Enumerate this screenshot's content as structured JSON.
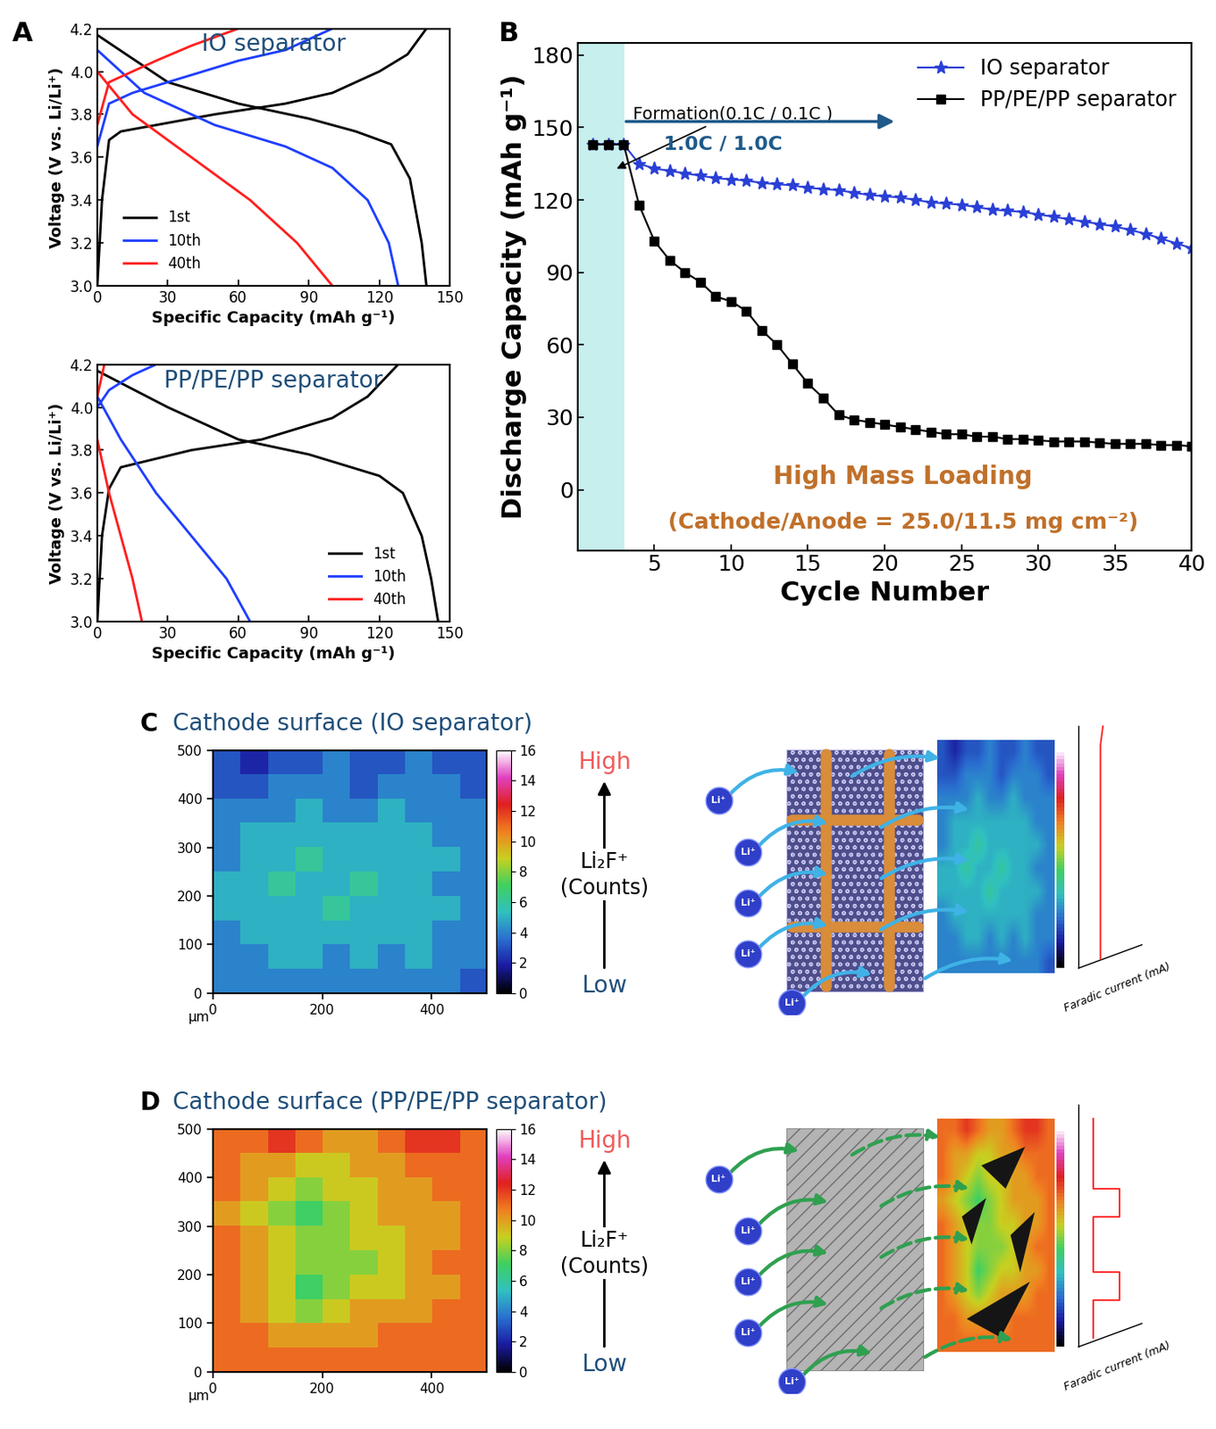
{
  "chart_data": [
    {
      "type": "line",
      "panel": "A",
      "title": "IO separator",
      "xlabel": "Specific Capacity (mAh g⁻¹)",
      "ylabel": "Voltage (V vs. Li/Li⁺)",
      "xlim": [
        0,
        150
      ],
      "xticks": [
        0,
        30,
        60,
        90,
        120,
        150
      ],
      "ylim": [
        3.0,
        4.2
      ],
      "yticks": [
        3.0,
        3.2,
        3.4,
        3.6,
        3.8,
        4.0,
        4.2
      ],
      "legend": "lower left",
      "series": [
        {
          "name": "1st",
          "color": "#000000",
          "x": [
            0,
            2,
            5,
            10,
            30,
            50,
            80,
            100,
            120,
            132,
            140,
            null,
            0,
            30,
            60,
            90,
            110,
            125,
            133,
            138,
            140
          ],
          "values": [
            3.0,
            3.4,
            3.68,
            3.72,
            3.76,
            3.8,
            3.85,
            3.9,
            4.0,
            4.08,
            4.2,
            null,
            4.17,
            3.95,
            3.85,
            3.78,
            3.72,
            3.66,
            3.5,
            3.2,
            3.0
          ]
        },
        {
          "name": "10th",
          "color": "#1f3fff",
          "x": [
            0,
            5,
            15,
            30,
            60,
            80,
            100,
            null,
            0,
            20,
            50,
            80,
            100,
            115,
            124,
            128
          ],
          "values": [
            3.65,
            3.85,
            3.9,
            3.95,
            4.05,
            4.1,
            4.2,
            null,
            4.1,
            3.9,
            3.75,
            3.65,
            3.55,
            3.4,
            3.2,
            3.0
          ]
        },
        {
          "name": "40th",
          "color": "#ff2020",
          "x": [
            0,
            5,
            25,
            40,
            60,
            null,
            0,
            15,
            40,
            65,
            85,
            100
          ],
          "values": [
            3.75,
            3.95,
            4.05,
            4.12,
            4.2,
            null,
            4.0,
            3.8,
            3.6,
            3.4,
            3.2,
            3.0
          ]
        }
      ]
    },
    {
      "type": "line",
      "title": "PP/PE/PP separator",
      "xlabel": "Specific Capacity (mAh g⁻¹)",
      "ylabel": "Voltage (V vs. Li/Li⁺)",
      "xlim": [
        0,
        150
      ],
      "xticks": [
        0,
        30,
        60,
        90,
        120,
        150
      ],
      "ylim": [
        3.0,
        4.2
      ],
      "yticks": [
        3.0,
        3.2,
        3.4,
        3.6,
        3.8,
        4.0,
        4.2
      ],
      "legend": "lower right",
      "series": [
        {
          "name": "1st",
          "color": "#000000",
          "x": [
            0,
            2,
            5,
            10,
            40,
            70,
            100,
            115,
            128,
            null,
            0,
            30,
            60,
            90,
            120,
            130,
            138,
            142,
            145
          ],
          "values": [
            3.0,
            3.4,
            3.62,
            3.72,
            3.8,
            3.85,
            3.95,
            4.05,
            4.2,
            null,
            4.17,
            4.0,
            3.85,
            3.78,
            3.68,
            3.6,
            3.4,
            3.2,
            3.0
          ]
        },
        {
          "name": "10th",
          "color": "#1f3fff",
          "x": [
            0,
            5,
            15,
            25,
            null,
            0,
            10,
            25,
            40,
            55,
            65
          ],
          "values": [
            4.0,
            4.08,
            4.15,
            4.2,
            null,
            4.05,
            3.85,
            3.6,
            3.4,
            3.2,
            3.0
          ]
        },
        {
          "name": "40th",
          "color": "#ff2020",
          "x": [
            0,
            3,
            null,
            0,
            5,
            10,
            15,
            19
          ],
          "values": [
            4.05,
            4.2,
            null,
            3.85,
            3.6,
            3.4,
            3.2,
            3.0
          ]
        }
      ]
    },
    {
      "type": "line",
      "panel": "B",
      "xlabel": "Cycle Number",
      "ylabel": "Discharge Capacity (mAh g⁻¹)",
      "x": [
        1,
        2,
        3,
        4,
        5,
        6,
        7,
        8,
        9,
        10,
        11,
        12,
        13,
        14,
        15,
        16,
        17,
        18,
        19,
        20,
        21,
        22,
        23,
        24,
        25,
        26,
        27,
        28,
        29,
        30,
        31,
        32,
        33,
        34,
        35,
        36,
        37,
        38,
        39,
        40
      ],
      "xlim": [
        0,
        40
      ],
      "xticks": [
        5,
        10,
        15,
        20,
        25,
        30,
        35,
        40
      ],
      "ylim": [
        -25,
        185
      ],
      "yticks": [
        0,
        30,
        60,
        90,
        120,
        150,
        180
      ],
      "legend": "upper right",
      "formation_span": [
        0,
        3
      ],
      "annotations": {
        "formation": "Formation(0.1C / 0.1C )",
        "rate": "1.0C / 1.0C",
        "loading_title": "High Mass Loading",
        "loading_detail": "(Cathode/Anode = 25.0/11.5 mg cm⁻²)"
      },
      "series": [
        {
          "name": "IO separator",
          "color": "#2a3fd6",
          "marker": "star",
          "values": [
            143,
            143,
            143,
            135,
            133,
            132,
            131,
            130,
            129,
            128.5,
            128,
            127,
            126.5,
            126,
            125,
            124.5,
            124,
            123,
            122,
            121.5,
            121,
            120,
            119,
            118.5,
            118,
            117,
            116,
            115.5,
            115,
            114,
            113,
            112,
            111,
            110,
            109,
            107.5,
            106,
            104,
            102,
            100
          ]
        },
        {
          "name": "PP/PE/PP separator",
          "color": "#000000",
          "marker": "square",
          "values": [
            143,
            143,
            143,
            118,
            103,
            95,
            90,
            86,
            80,
            78,
            74,
            66,
            60,
            52,
            44,
            38,
            31,
            29,
            28,
            27,
            26,
            25,
            24,
            23,
            23,
            22,
            22,
            21,
            21,
            20.5,
            20,
            20,
            20,
            19.5,
            19,
            19,
            19,
            18.5,
            18.5,
            18
          ]
        }
      ]
    },
    {
      "type": "heatmap",
      "panel": "C",
      "title": "Cathode surface (IO separator)",
      "xlim": [
        0,
        500
      ],
      "ylim": [
        0,
        500
      ],
      "xticks": [
        0,
        200,
        400
      ],
      "yticks": [
        0,
        100,
        200,
        300,
        400,
        500
      ],
      "unit_label": "µm",
      "colorbar": {
        "range": [
          0,
          16
        ],
        "ticks": [
          0,
          2,
          4,
          6,
          8,
          10,
          12,
          14,
          16
        ]
      },
      "scale_labels": {
        "high": "High",
        "low": "Low",
        "quantity": "Li₂F⁺\n(Counts)"
      },
      "schematic": {
        "ion_label": "Li⁺",
        "current_label": "Faradic current (mA)"
      },
      "cells": [
        [
          3,
          2,
          3,
          3,
          4,
          3,
          3,
          4,
          3,
          3
        ],
        [
          3,
          3,
          4,
          4,
          4,
          3,
          4,
          4,
          4,
          3
        ],
        [
          4,
          4,
          4,
          5,
          4,
          4,
          5,
          4,
          4,
          4
        ],
        [
          4,
          5,
          5,
          5,
          5,
          5,
          5,
          5,
          4,
          4
        ],
        [
          4,
          5,
          5,
          6,
          5,
          5,
          5,
          5,
          5,
          4
        ],
        [
          5,
          5,
          6,
          5,
          5,
          6,
          5,
          5,
          4,
          4
        ],
        [
          5,
          5,
          5,
          5,
          6,
          5,
          5,
          5,
          5,
          4
        ],
        [
          4,
          5,
          5,
          5,
          5,
          5,
          5,
          5,
          4,
          4
        ],
        [
          4,
          4,
          5,
          5,
          4,
          5,
          4,
          5,
          4,
          4
        ],
        [
          4,
          4,
          4,
          4,
          4,
          4,
          4,
          4,
          4,
          3
        ]
      ]
    },
    {
      "type": "heatmap",
      "panel": "D",
      "title": "Cathode surface (PP/PE/PP separator)",
      "xlim": [
        0,
        500
      ],
      "ylim": [
        0,
        500
      ],
      "xticks": [
        0,
        200,
        400
      ],
      "yticks": [
        0,
        100,
        200,
        300,
        400,
        500
      ],
      "unit_label": "µm",
      "colorbar": {
        "range": [
          0,
          16
        ],
        "ticks": [
          0,
          2,
          4,
          6,
          8,
          10,
          12,
          14,
          16
        ]
      },
      "scale_labels": {
        "high": "High",
        "low": "Low",
        "quantity": "Li₂F⁺\n(Counts)"
      },
      "schematic": {
        "ion_label": "Li⁺",
        "current_label": "Faradic current (mA)"
      },
      "cells": [
        [
          11,
          11,
          12,
          11,
          10,
          10,
          11,
          12,
          12,
          11
        ],
        [
          11,
          10,
          10,
          9,
          9,
          10,
          10,
          11,
          11,
          11
        ],
        [
          11,
          10,
          9,
          8,
          9,
          9,
          10,
          10,
          11,
          11
        ],
        [
          10,
          9,
          8,
          7,
          8,
          9,
          10,
          10,
          10,
          11
        ],
        [
          11,
          10,
          9,
          8,
          8,
          9,
          9,
          10,
          10,
          11
        ],
        [
          11,
          10,
          9,
          8,
          8,
          8,
          9,
          10,
          11,
          11
        ],
        [
          11,
          10,
          9,
          7,
          8,
          9,
          9,
          10,
          10,
          11
        ],
        [
          11,
          10,
          9,
          8,
          9,
          10,
          10,
          10,
          11,
          11
        ],
        [
          11,
          11,
          10,
          10,
          10,
          10,
          11,
          11,
          11,
          11
        ],
        [
          11,
          11,
          11,
          11,
          11,
          11,
          11,
          11,
          11,
          11
        ]
      ]
    }
  ]
}
